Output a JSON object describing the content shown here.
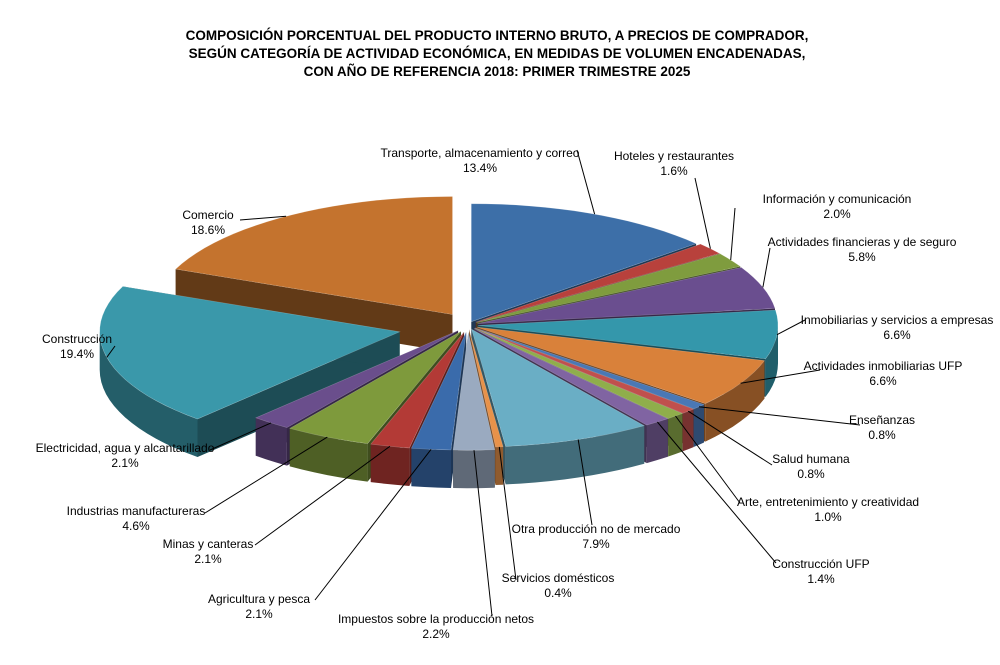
{
  "chart_data": {
    "type": "pie",
    "title": [
      "COMPOSICIÓN PORCENTUAL DEL PRODUCTO INTERNO BRUTO, A PRECIOS DE COMPRADOR,",
      "SEGÚN CATEGORÍA DE ACTIVIDAD ECONÓMICA, EN MEDIDAS DE VOLUMEN ENCADENADAS,",
      "CON AÑO DE REFERENCIA 2018: PRIMER TRIMESTRE 2025"
    ],
    "slices": [
      {
        "label": "Transporte, almacenamiento y correo",
        "value": 13.4,
        "display": "13.4%",
        "color": "#3d6fa8"
      },
      {
        "label": "Hoteles y restaurantes",
        "value": 1.6,
        "display": "1.6%",
        "color": "#b8413c"
      },
      {
        "label": "Información y comunicación",
        "value": 2.0,
        "display": "2.0%",
        "color": "#7f9c3e"
      },
      {
        "label": "Actividades financieras y de seguro",
        "value": 5.8,
        "display": "5.8%",
        "color": "#6a4e8f"
      },
      {
        "label": "Inmobiliarias y servicios a empresas",
        "value": 6.6,
        "display": "6.6%",
        "color": "#3497ab"
      },
      {
        "label": "Actividades inmobiliarias UFP",
        "value": 6.6,
        "display": "6.6%",
        "color": "#d9813a"
      },
      {
        "label": "Enseñanzas",
        "value": 0.8,
        "display": "0.8%",
        "color": "#4a78b5"
      },
      {
        "label": "Salud humana",
        "value": 0.8,
        "display": "0.8%",
        "color": "#c0504d"
      },
      {
        "label": "Arte, entretenimiento y creatividad",
        "value": 1.0,
        "display": "1.0%",
        "color": "#8fae4b"
      },
      {
        "label": "Construcción UFP",
        "value": 1.4,
        "display": "1.4%",
        "color": "#8064a2"
      },
      {
        "label": "Otra producción no de mercado",
        "value": 7.9,
        "display": "7.9%",
        "color": "#6aaec5"
      },
      {
        "label": "Servicios domésticos",
        "value": 0.4,
        "display": "0.4%",
        "color": "#e8924a"
      },
      {
        "label": "Impuestos sobre la producción netos",
        "value": 2.2,
        "display": "2.2%",
        "color": "#9aaac0"
      },
      {
        "label": "Agricultura y pesca",
        "value": 2.1,
        "display": "2.1%",
        "color": "#3a6bab"
      },
      {
        "label": "Minas y canteras",
        "value": 2.1,
        "display": "2.1%",
        "color": "#b33a36"
      },
      {
        "label": "Industrias manufactureras",
        "value": 4.6,
        "display": "4.6%",
        "color": "#7e9a3c"
      },
      {
        "label": "Electricidad, agua y alcantarillado",
        "value": 2.1,
        "display": "2.1%",
        "color": "#6a4e8c"
      },
      {
        "label": "Construcción",
        "value": 19.4,
        "display": "19.4%",
        "color": "#3a98aa"
      },
      {
        "label": "Comercio",
        "value": 18.6,
        "display": "18.6%",
        "color": "#c4732e"
      }
    ]
  }
}
